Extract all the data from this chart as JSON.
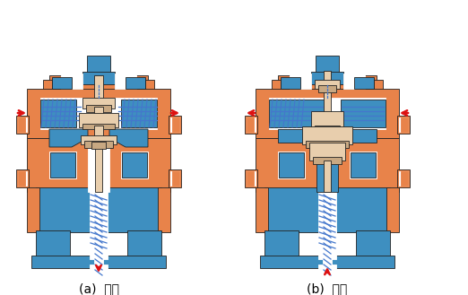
{
  "label_a": "(a)  分流",
  "label_b": "(b)  合流",
  "bg_color": "#ffffff",
  "orange": "#E8834A",
  "blue": "#3E8FC0",
  "tan": "#C8A882",
  "light_tan": "#E8CEAD",
  "white": "#ffffff",
  "arrow_red": "#DD1111",
  "dash_blue": "#4477CC",
  "label_fontsize": 10,
  "fig_width": 5.22,
  "fig_height": 3.29
}
